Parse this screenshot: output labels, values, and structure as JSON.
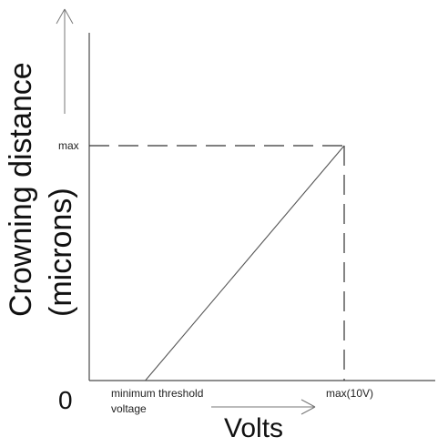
{
  "chart_data": {
    "type": "line",
    "ylabel_lines": [
      "Crowning distance",
      "(microns)"
    ],
    "xlabel": "Volts",
    "origin_label": "0",
    "x_ticks": [
      "minimum threshold",
      "voltage",
      "max(10V)"
    ],
    "y_ticks": [
      "max"
    ],
    "x": [
      0.22,
      1.0
    ],
    "y": [
      0,
      1.0
    ],
    "xlim": [
      0,
      1.32
    ],
    "ylim": [
      0,
      1.0
    ],
    "grid": false,
    "legend": "none"
  },
  "colors": {
    "axis": "#4a4a4a",
    "series": "#555555",
    "text": "#111111"
  }
}
